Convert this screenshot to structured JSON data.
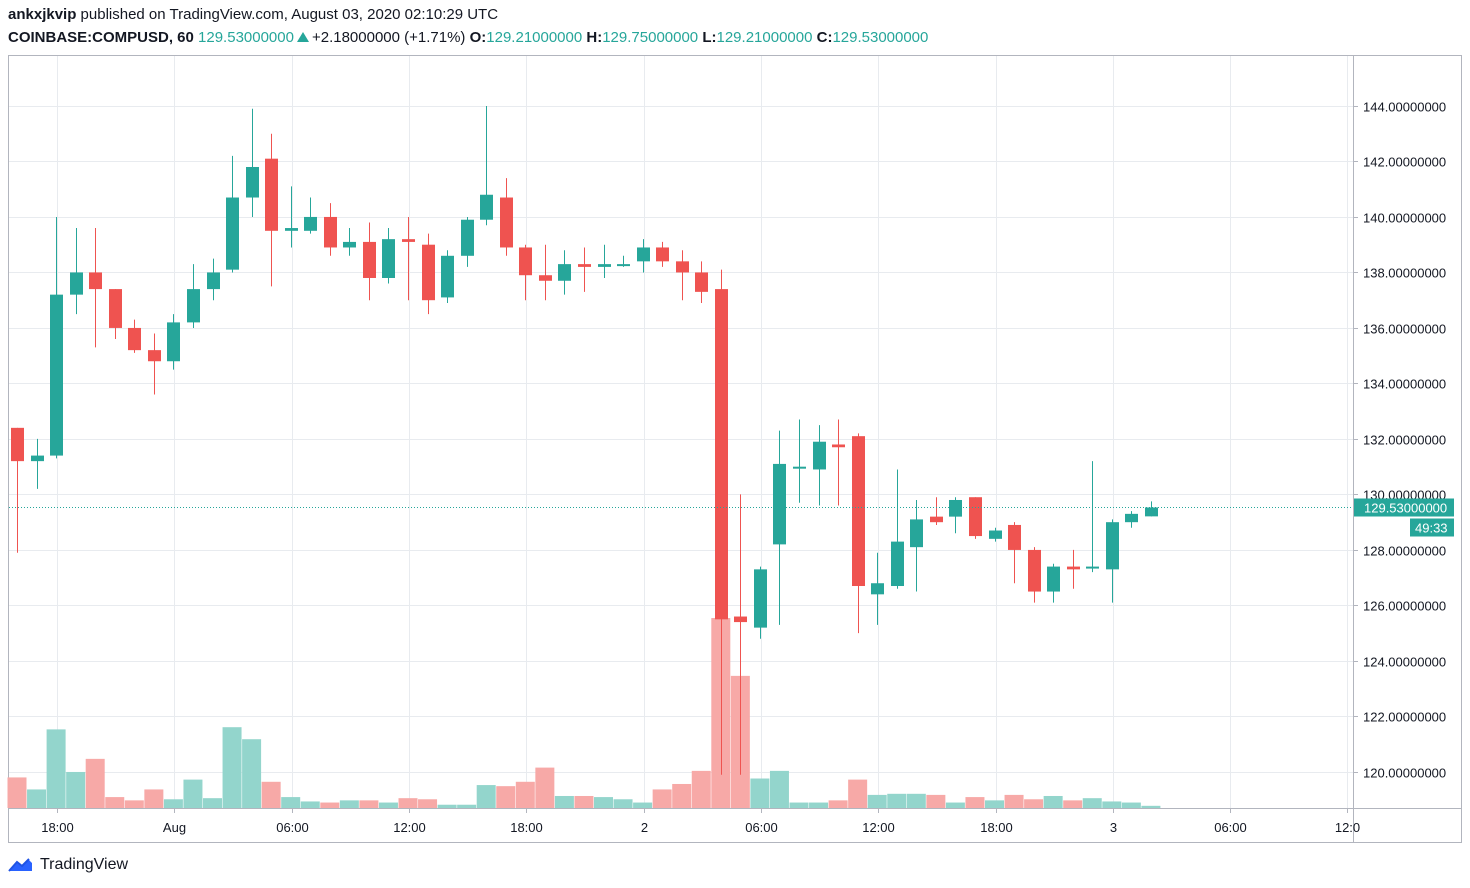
{
  "header": {
    "author": "ankxjkvip",
    "published_text": "published on TradingView.com, August 03, 2020 02:10:29 UTC",
    "symbol": "COINBASE:COMPUSD, 60",
    "last_price": "129.53000000",
    "change": "+2.18000000 (+1.71%)",
    "o_label": "O:",
    "o_value": "129.21000000",
    "h_label": "H:",
    "h_value": "129.75000000",
    "l_label": "L:",
    "l_value": "129.21000000",
    "c_label": "C:",
    "c_value": "129.53000000"
  },
  "footer": {
    "brand": "TradingView"
  },
  "colors": {
    "up": "#26a69a",
    "down": "#ef5350",
    "up_volume": "#93d5cc",
    "down_volume": "#f7a9a7",
    "grid": "#e8ebef"
  },
  "chart_data": {
    "type": "candlestick",
    "y_axis": {
      "range": [
        118.7,
        145.8
      ],
      "ticks": [
        120,
        122,
        124,
        126,
        128,
        130,
        132,
        134,
        136,
        138,
        140,
        142,
        144
      ],
      "tick_labels": [
        "120.00000000",
        "122.00000000",
        "124.00000000",
        "126.00000000",
        "128.00000000",
        "130.00000000",
        "132.00000000",
        "134.00000000",
        "136.00000000",
        "138.00000000",
        "140.00000000",
        "142.00000000",
        "144.00000000"
      ]
    },
    "x_axis": {
      "ticks": [
        {
          "index": 2,
          "label": "18:00"
        },
        {
          "index": 8,
          "label": "Aug"
        },
        {
          "index": 14,
          "label": "06:00"
        },
        {
          "index": 20,
          "label": "12:00"
        },
        {
          "index": 26,
          "label": "18:00"
        },
        {
          "index": 32,
          "label": "2"
        },
        {
          "index": 38,
          "label": "06:00"
        },
        {
          "index": 44,
          "label": "12:00"
        },
        {
          "index": 50,
          "label": "18:00"
        },
        {
          "index": 56,
          "label": "3"
        },
        {
          "index": 62,
          "label": "06:00"
        },
        {
          "index": 68,
          "label": "12:0"
        }
      ]
    },
    "last_price_label": "129.53000000",
    "countdown_label": "49:33",
    "last_price": 129.53,
    "candles": [
      {
        "o": 132.4,
        "h": 132.4,
        "l": 127.9,
        "c": 131.2,
        "v": 0.28
      },
      {
        "o": 131.2,
        "h": 132.0,
        "l": 130.2,
        "c": 131.4,
        "v": 0.17
      },
      {
        "o": 131.4,
        "h": 140.0,
        "l": 131.3,
        "c": 137.2,
        "v": 0.72
      },
      {
        "o": 137.2,
        "h": 139.6,
        "l": 136.5,
        "c": 138.0,
        "v": 0.33
      },
      {
        "o": 138.0,
        "h": 139.6,
        "l": 135.3,
        "c": 137.4,
        "v": 0.45
      },
      {
        "o": 137.4,
        "h": 137.4,
        "l": 135.6,
        "c": 136.0,
        "v": 0.1
      },
      {
        "o": 136.0,
        "h": 136.3,
        "l": 135.1,
        "c": 135.2,
        "v": 0.07
      },
      {
        "o": 135.2,
        "h": 135.8,
        "l": 133.6,
        "c": 134.8,
        "v": 0.17
      },
      {
        "o": 134.8,
        "h": 136.5,
        "l": 134.5,
        "c": 136.2,
        "v": 0.08
      },
      {
        "o": 136.2,
        "h": 138.3,
        "l": 136.0,
        "c": 137.4,
        "v": 0.26
      },
      {
        "o": 137.4,
        "h": 138.5,
        "l": 137.0,
        "c": 138.0,
        "v": 0.09
      },
      {
        "o": 138.1,
        "h": 142.2,
        "l": 138.0,
        "c": 140.7,
        "v": 0.74
      },
      {
        "o": 140.7,
        "h": 143.9,
        "l": 140.0,
        "c": 141.8,
        "v": 0.63
      },
      {
        "o": 142.1,
        "h": 143.0,
        "l": 137.5,
        "c": 139.5,
        "v": 0.24
      },
      {
        "o": 139.5,
        "h": 141.1,
        "l": 138.9,
        "c": 139.6,
        "v": 0.1
      },
      {
        "o": 139.5,
        "h": 140.7,
        "l": 139.4,
        "c": 140.0,
        "v": 0.06
      },
      {
        "o": 140.0,
        "h": 140.5,
        "l": 138.6,
        "c": 138.9,
        "v": 0.05
      },
      {
        "o": 138.9,
        "h": 139.6,
        "l": 138.6,
        "c": 139.1,
        "v": 0.07
      },
      {
        "o": 139.1,
        "h": 139.8,
        "l": 137.0,
        "c": 137.8,
        "v": 0.07
      },
      {
        "o": 137.8,
        "h": 139.6,
        "l": 137.6,
        "c": 139.2,
        "v": 0.05
      },
      {
        "o": 139.2,
        "h": 140.0,
        "l": 137.0,
        "c": 139.1,
        "v": 0.09
      },
      {
        "o": 139.0,
        "h": 139.4,
        "l": 136.5,
        "c": 137.0,
        "v": 0.08
      },
      {
        "o": 137.1,
        "h": 138.8,
        "l": 136.9,
        "c": 138.6,
        "v": 0.03
      },
      {
        "o": 138.6,
        "h": 140.0,
        "l": 138.2,
        "c": 139.9,
        "v": 0.03
      },
      {
        "o": 139.9,
        "h": 144.0,
        "l": 139.7,
        "c": 140.8,
        "v": 0.21
      },
      {
        "o": 140.7,
        "h": 141.4,
        "l": 138.6,
        "c": 138.9,
        "v": 0.2
      },
      {
        "o": 138.9,
        "h": 139.0,
        "l": 137.0,
        "c": 137.9,
        "v": 0.24
      },
      {
        "o": 137.9,
        "h": 139.0,
        "l": 137.0,
        "c": 137.7,
        "v": 0.37
      },
      {
        "o": 137.7,
        "h": 138.8,
        "l": 137.2,
        "c": 138.3,
        "v": 0.11
      },
      {
        "o": 138.3,
        "h": 138.9,
        "l": 137.3,
        "c": 138.2,
        "v": 0.11
      },
      {
        "o": 138.2,
        "h": 139.0,
        "l": 137.8,
        "c": 138.3,
        "v": 0.1
      },
      {
        "o": 138.3,
        "h": 138.6,
        "l": 138.2,
        "c": 138.3,
        "v": 0.08
      },
      {
        "o": 138.4,
        "h": 139.2,
        "l": 138.0,
        "c": 138.9,
        "v": 0.05
      },
      {
        "o": 138.9,
        "h": 139.1,
        "l": 138.2,
        "c": 138.4,
        "v": 0.17
      },
      {
        "o": 138.4,
        "h": 138.8,
        "l": 137.0,
        "c": 138.0,
        "v": 0.22
      },
      {
        "o": 138.0,
        "h": 138.4,
        "l": 136.9,
        "c": 137.3,
        "v": 0.34
      },
      {
        "o": 137.4,
        "h": 138.1,
        "l": 119.9,
        "c": 125.5,
        "v": 1.74
      },
      {
        "o": 125.6,
        "h": 130.0,
        "l": 119.9,
        "c": 125.4,
        "v": 1.21
      },
      {
        "o": 125.2,
        "h": 127.4,
        "l": 124.8,
        "c": 127.3,
        "v": 0.27
      },
      {
        "o": 128.2,
        "h": 132.3,
        "l": 125.3,
        "c": 131.1,
        "v": 0.34
      },
      {
        "o": 131.0,
        "h": 132.7,
        "l": 129.7,
        "c": 131.0,
        "v": 0.05
      },
      {
        "o": 130.9,
        "h": 132.5,
        "l": 129.6,
        "c": 131.9,
        "v": 0.05
      },
      {
        "o": 131.8,
        "h": 132.7,
        "l": 129.6,
        "c": 131.7,
        "v": 0.07
      },
      {
        "o": 132.1,
        "h": 132.2,
        "l": 125.0,
        "c": 126.7,
        "v": 0.26
      },
      {
        "o": 126.4,
        "h": 127.9,
        "l": 125.3,
        "c": 126.8,
        "v": 0.12
      },
      {
        "o": 126.7,
        "h": 130.9,
        "l": 126.6,
        "c": 128.3,
        "v": 0.13
      },
      {
        "o": 128.1,
        "h": 129.8,
        "l": 126.5,
        "c": 129.1,
        "v": 0.13
      },
      {
        "o": 129.2,
        "h": 129.9,
        "l": 128.9,
        "c": 129.0,
        "v": 0.12
      },
      {
        "o": 129.2,
        "h": 129.9,
        "l": 128.6,
        "c": 129.8,
        "v": 0.05
      },
      {
        "o": 129.9,
        "h": 129.9,
        "l": 128.4,
        "c": 128.5,
        "v": 0.1
      },
      {
        "o": 128.4,
        "h": 128.8,
        "l": 128.3,
        "c": 128.7,
        "v": 0.07
      },
      {
        "o": 128.9,
        "h": 129.0,
        "l": 126.8,
        "c": 128.0,
        "v": 0.12
      },
      {
        "o": 128.0,
        "h": 128.1,
        "l": 126.1,
        "c": 126.5,
        "v": 0.08
      },
      {
        "o": 126.5,
        "h": 127.5,
        "l": 126.1,
        "c": 127.4,
        "v": 0.11
      },
      {
        "o": 127.4,
        "h": 128.0,
        "l": 126.6,
        "c": 127.3,
        "v": 0.07
      },
      {
        "o": 127.4,
        "h": 131.2,
        "l": 127.2,
        "c": 127.4,
        "v": 0.09
      },
      {
        "o": 127.3,
        "h": 129.1,
        "l": 126.1,
        "c": 129.0,
        "v": 0.06
      },
      {
        "o": 129.0,
        "h": 129.4,
        "l": 128.8,
        "c": 129.3,
        "v": 0.05
      },
      {
        "o": 129.21,
        "h": 129.75,
        "l": 129.21,
        "c": 129.53,
        "v": 0.02
      }
    ]
  }
}
